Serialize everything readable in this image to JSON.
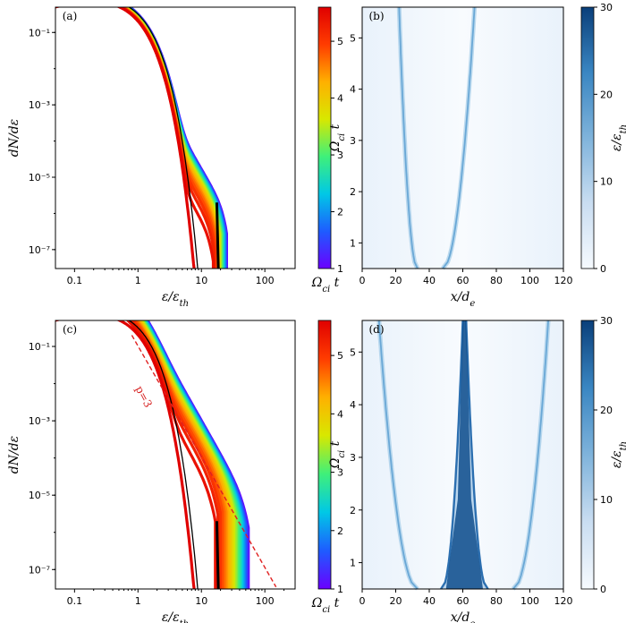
{
  "colors": {
    "rainbow": [
      "#6a00ff",
      "#1e5cff",
      "#00c8e6",
      "#3ff07a",
      "#d8e800",
      "#ffb000",
      "#ff3c00",
      "#e00000"
    ],
    "blues": [
      "#f6fafe",
      "#c9ddf1",
      "#7fb3db",
      "#3a86c2",
      "#0a3f7a"
    ],
    "fit_line": "#e02020",
    "axis": "#000000"
  },
  "chart_data": [
    {
      "panel": "(a)",
      "type": "line",
      "xscale": "log",
      "yscale": "log",
      "xlim": [
        0.05,
        300
      ],
      "ylim": [
        3e-08,
        0.5
      ],
      "xlabel": "ε/ε_th",
      "ylabel": "dN/dε",
      "xticks": [
        "0.1",
        "1",
        "10",
        "100"
      ],
      "yticks": [
        "10⁻¹",
        "10⁻³",
        "10⁻⁵",
        "10⁻⁷"
      ],
      "colorbar": {
        "label": "Ω_ci t",
        "range": [
          1,
          5.6
        ],
        "ticks": [
          "1",
          "2",
          "3",
          "4",
          "5"
        ]
      },
      "spectra_tail": {
        "early_cutoff": 25,
        "late_cutoff": 15
      }
    },
    {
      "panel": "(b)",
      "type": "heatmap",
      "xlim": [
        0,
        120
      ],
      "ylim": [
        0.5,
        5.6
      ],
      "xlabel": "x/d_e",
      "ylabel": "Ω_ci t",
      "xticks": [
        "0",
        "20",
        "40",
        "60",
        "80",
        "100",
        "120"
      ],
      "yticks": [
        "1",
        "2",
        "3",
        "4",
        "5"
      ],
      "colorbar": {
        "label": "ε/ε_th",
        "range": [
          0,
          30
        ],
        "ticks": [
          "0",
          "10",
          "20",
          "30"
        ]
      },
      "front_left": {
        "start_x": 33,
        "end_x": 22
      },
      "front_right": {
        "start_x": 48,
        "end_x": 67
      }
    },
    {
      "panel": "(c)",
      "type": "line",
      "xscale": "log",
      "yscale": "log",
      "xlim": [
        0.05,
        300
      ],
      "ylim": [
        3e-08,
        0.5
      ],
      "xlabel": "ε/ε_th",
      "ylabel": "dN/dε",
      "xticks": [
        "0.1",
        "1",
        "10",
        "100"
      ],
      "yticks": [
        "10⁻¹",
        "10⁻³",
        "10⁻⁵",
        "10⁻⁷"
      ],
      "colorbar": {
        "label": "Ω_ci t",
        "range": [
          1,
          5.6
        ],
        "ticks": [
          "1",
          "2",
          "3",
          "4",
          "5"
        ]
      },
      "annotation": "p=3",
      "power_law": {
        "index": -3,
        "x": [
          0.8,
          150
        ],
        "y": [
          0.2,
          3.4e-08
        ]
      },
      "spectra_tail": {
        "early_cutoff": 55,
        "late_cutoff": 15
      }
    },
    {
      "panel": "(d)",
      "type": "heatmap",
      "xlim": [
        0,
        120
      ],
      "ylim": [
        0.5,
        5.6
      ],
      "xlabel": "x/d_e",
      "ylabel": "Ω_ci t",
      "xticks": [
        "0",
        "20",
        "40",
        "60",
        "80",
        "100",
        "120"
      ],
      "yticks": [
        "1",
        "2",
        "3",
        "4",
        "5"
      ],
      "colorbar": {
        "label": "ε/ε_th",
        "range": [
          0,
          30
        ],
        "ticks": [
          "0",
          "10",
          "20",
          "30"
        ]
      },
      "front_left": {
        "start_x": 33,
        "end_x": 10
      },
      "front_right": {
        "start_x": 90,
        "end_x": 111
      },
      "central_jet": {
        "start_left": 47,
        "start_right": 75,
        "end_left": 60,
        "end_right": 62
      }
    }
  ]
}
